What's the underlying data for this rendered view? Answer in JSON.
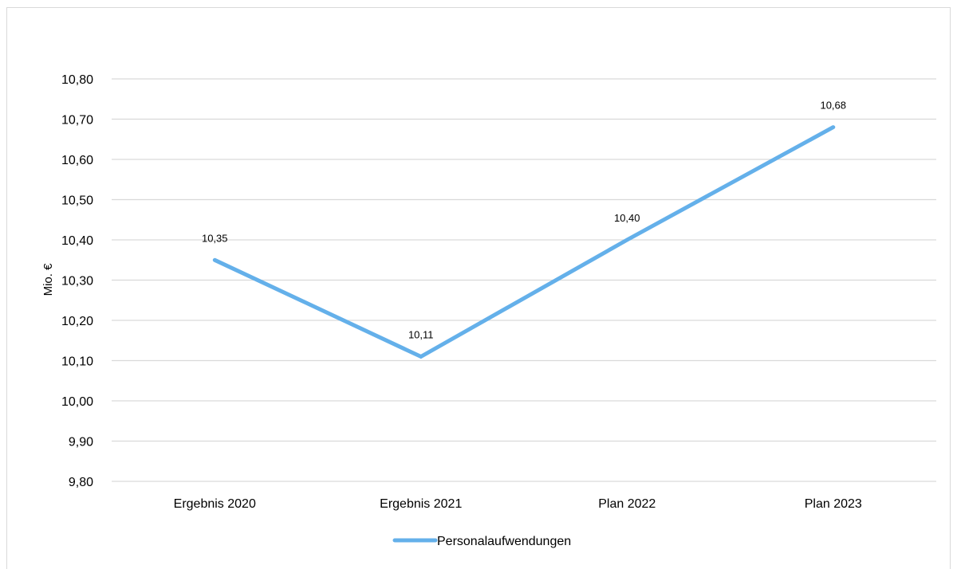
{
  "chart_data": {
    "type": "line",
    "categories": [
      "Ergebnis 2020",
      "Ergebnis 2021",
      "Plan 2022",
      "Plan 2023"
    ],
    "series": [
      {
        "name": "Personalaufwendungen",
        "values": [
          10.35,
          10.11,
          10.4,
          10.68
        ],
        "labels": [
          "10,35",
          "10,11",
          "10,40",
          "10,68"
        ],
        "color": "#64b0ea"
      }
    ],
    "ylabel": "Mio. €",
    "ylim": [
      9.8,
      10.8
    ],
    "yticks": [
      9.8,
      9.9,
      10.0,
      10.1,
      10.2,
      10.3,
      10.4,
      10.5,
      10.6,
      10.7,
      10.8
    ],
    "ytick_labels": [
      "9,80",
      "9,90",
      "10,00",
      "10,10",
      "10,20",
      "10,30",
      "10,40",
      "10,50",
      "10,60",
      "10,70",
      "10,80"
    ],
    "grid": true,
    "legend_position": "bottom-center",
    "gridline_color": "#d9d9d9"
  }
}
